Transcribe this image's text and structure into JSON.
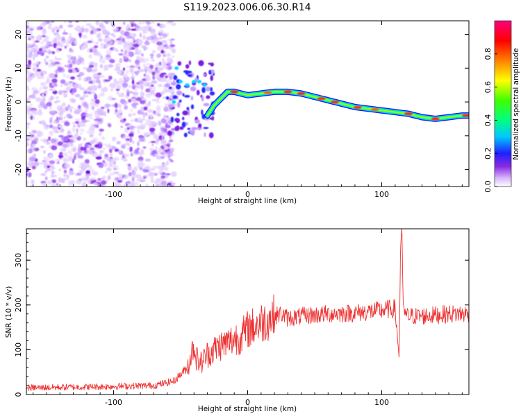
{
  "title": "S119.2023.006.06.30.R14",
  "chart_data": [
    {
      "type": "heatmap",
      "xlabel": "Height of straight line (km)",
      "ylabel": "Frequency (Hz)",
      "xlim": [
        -165,
        165
      ],
      "ylim": [
        -25,
        24
      ],
      "xticks": [
        "-100",
        "0",
        "100"
      ],
      "yticks": [
        "-20",
        "-10",
        "0",
        "10",
        "20"
      ],
      "colorbar": {
        "label": "Normalized spectral amplitude",
        "range": [
          0,
          1
        ],
        "ticks": [
          "0.0",
          "0.2",
          "0.4",
          "0.6",
          "0.8"
        ]
      },
      "ridge": {
        "x": [
          -30,
          -25,
          -20,
          -15,
          -10,
          0,
          10,
          20,
          30,
          40,
          50,
          60,
          70,
          80,
          90,
          100,
          110,
          120,
          130,
          140,
          150,
          160,
          165
        ],
        "y": [
          -4,
          -1,
          1,
          3,
          3,
          2,
          2.5,
          3,
          3,
          2.5,
          1.5,
          0.5,
          -0.5,
          -1.5,
          -2,
          -2.5,
          -3,
          -3.5,
          -4.5,
          -5,
          -4.5,
          -4,
          -4
        ]
      }
    },
    {
      "type": "line",
      "xlabel": "Height of straight line (km)",
      "ylabel": "SNR (10 * v/v)",
      "xlim": [
        -165,
        165
      ],
      "ylim": [
        0,
        370
      ],
      "xticks": [
        "-100",
        "0",
        "100"
      ],
      "yticks": [
        "0",
        "100",
        "200",
        "300"
      ],
      "series": [
        {
          "color": "#ee3030",
          "x": [
            -165,
            -120,
            -70,
            -55,
            -45,
            -40,
            -38,
            -35,
            -30,
            -25,
            -20,
            -15,
            -10,
            -5,
            0,
            10,
            20,
            25,
            30,
            40,
            60,
            80,
            90,
            100,
            110,
            113,
            114,
            115,
            116,
            118,
            130,
            150,
            165
          ],
          "y": [
            15,
            17,
            20,
            30,
            60,
            110,
            80,
            70,
            90,
            100,
            110,
            115,
            125,
            130,
            145,
            160,
            175,
            180,
            170,
            175,
            180,
            182,
            185,
            188,
            192,
            80,
            330,
            370,
            200,
            175,
            175,
            180,
            180
          ]
        }
      ]
    }
  ]
}
